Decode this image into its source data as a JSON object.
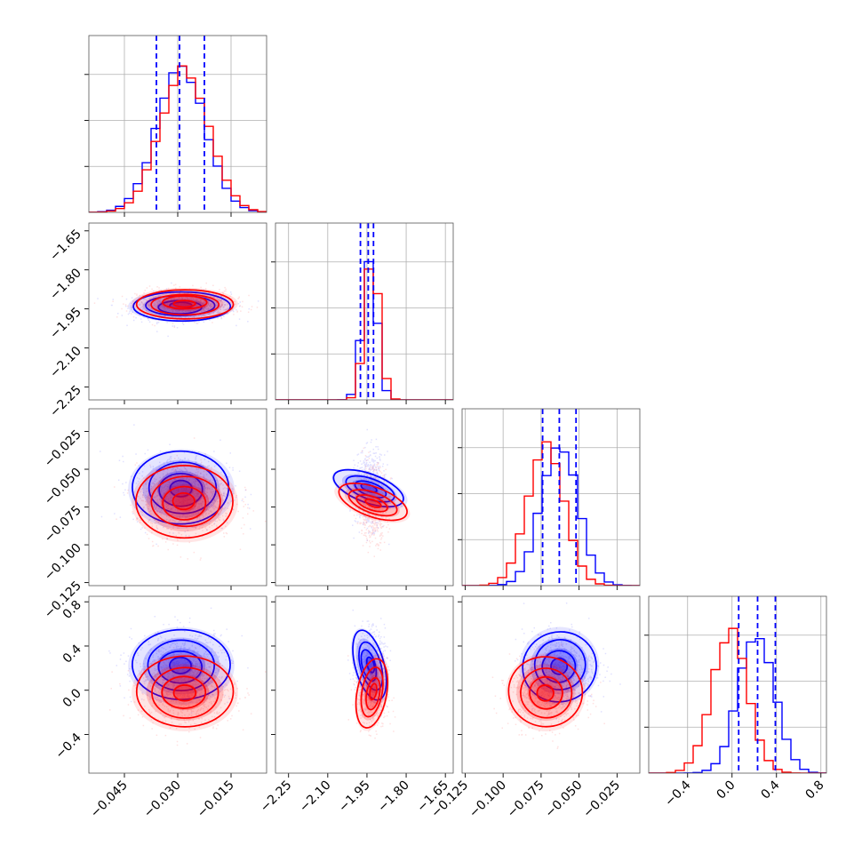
{
  "chart_data": {
    "type": "corner",
    "grid": true,
    "colors": {
      "series_a": "#0000ff",
      "series_b": "#ff0000"
    },
    "parameters": [
      {
        "range": [
          -0.055,
          -0.005
        ],
        "ticks": [
          -0.045,
          -0.03,
          -0.015
        ],
        "tick_labels": [
          "−0.045",
          "−0.030",
          "−0.015"
        ]
      },
      {
        "range": [
          -2.3,
          -1.62
        ],
        "ticks": [
          -2.25,
          -2.1,
          -1.95,
          -1.8,
          -1.65
        ],
        "tick_labels": [
          "−2.25",
          "−2.10",
          "−1.95",
          "−1.80",
          "−1.65"
        ]
      },
      {
        "range": [
          -0.127,
          -0.01
        ],
        "ticks": [
          -0.125,
          -0.1,
          -0.075,
          -0.05,
          -0.025
        ],
        "tick_labels": [
          "−0.125",
          "−0.100",
          "−0.075",
          "−0.050",
          "−0.025"
        ]
      },
      {
        "range": [
          -0.75,
          0.85
        ],
        "ticks": [
          -0.4,
          0.0,
          0.4,
          0.8
        ],
        "tick_labels": [
          "−0.4",
          "0.0",
          "0.4",
          "0.8"
        ]
      }
    ],
    "series": [
      {
        "color": "#0000ff",
        "mean": [
          -0.029,
          -1.94,
          -0.063,
          0.22
        ],
        "sd": [
          0.0068,
          0.028,
          0.012,
          0.16
        ],
        "quantiles": [
          [
            -0.036,
            -0.0295,
            -0.0225
          ],
          [
            -1.975,
            -1.945,
            -1.925
          ],
          [
            -0.074,
            -0.063,
            -0.052
          ],
          [
            0.06,
            0.23,
            0.39
          ]
        ]
      },
      {
        "color": "#ff0000",
        "mean": [
          -0.028,
          -1.93,
          -0.072,
          -0.02
        ],
        "sd": [
          0.0068,
          0.028,
          0.012,
          0.16
        ]
      }
    ]
  }
}
